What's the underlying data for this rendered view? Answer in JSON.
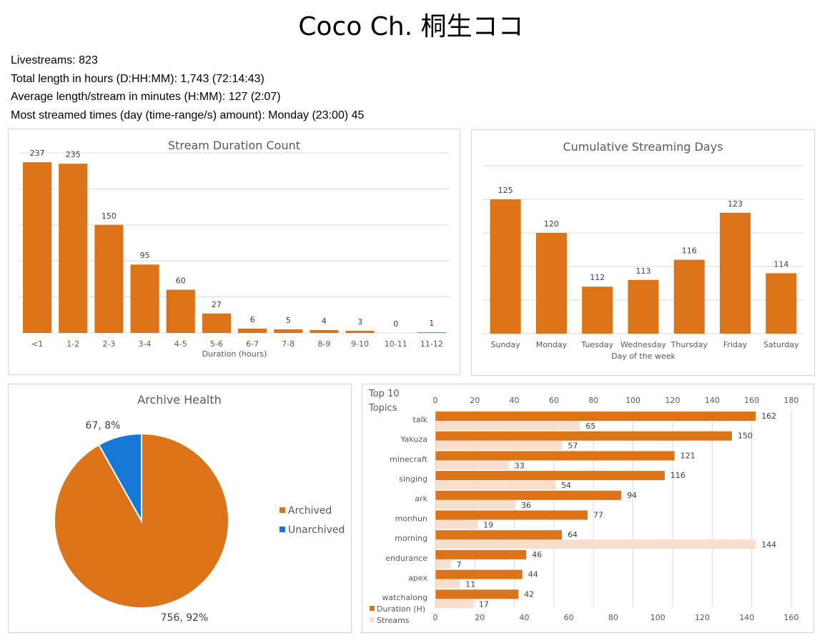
{
  "page": {
    "title": "Coco Ch. 桐生ココ",
    "stats": [
      "Livestreams: 823",
      "Total length in hours (D:HH:MM): 1,743 (72:14:43)",
      "Average length/stream in minutes (H:MM): 127 (2:07)",
      "Most streamed times (day (time-range/s) amount): Monday (23:00) 45"
    ]
  },
  "colors": {
    "orange": "#DD7318",
    "light": "#F8DECB",
    "blue": "#1777D5",
    "grid": "#D9D9D9",
    "text": "#595959"
  },
  "chart_data": [
    {
      "id": "duration",
      "type": "bar",
      "title": "Stream Duration Count",
      "xlabel": "Duration (hours)",
      "ylabel": "",
      "categories": [
        "<1",
        "1-2",
        "2-3",
        "3-4",
        "4-5",
        "5-6",
        "6-7",
        "7-8",
        "8-9",
        "9-10",
        "10-11",
        "11-12"
      ],
      "values": [
        237,
        235,
        150,
        95,
        60,
        27,
        6,
        5,
        4,
        3,
        0,
        1
      ],
      "ylim": [
        0,
        250
      ],
      "grid": true
    },
    {
      "id": "days",
      "type": "bar",
      "title": "Cumulative Streaming Days",
      "xlabel": "Day of the week",
      "ylabel": "",
      "categories": [
        "Sunday",
        "Monday",
        "Tuesday",
        "Wednesday",
        "Thursday",
        "Friday",
        "Saturday"
      ],
      "values": [
        125,
        120,
        112,
        113,
        116,
        123,
        114
      ],
      "ylim": [
        105,
        130
      ],
      "grid": true
    },
    {
      "id": "archive",
      "type": "pie",
      "title": "Archive Health",
      "labels": [
        "Archived",
        "Unarchived"
      ],
      "values": [
        756,
        67
      ],
      "data_labels": [
        "756, 92%",
        "67, 8%"
      ],
      "legend": "right"
    },
    {
      "id": "topics",
      "type": "bar",
      "orientation": "horizontal",
      "title": "Top 10 Topics",
      "categories": [
        "talk",
        "Yakuza",
        "minecraft",
        "singing",
        "ark",
        "monhun",
        "morning",
        "endurance",
        "apex",
        "watchalong"
      ],
      "series": [
        {
          "name": "Duration (H)",
          "values": [
            162,
            150,
            121,
            116,
            94,
            77,
            64,
            46,
            44,
            42
          ],
          "axis": "top",
          "ticks": [
            0,
            20,
            40,
            60,
            80,
            100,
            120,
            140,
            160,
            180
          ],
          "xlim": [
            0,
            180
          ]
        },
        {
          "name": "Streams",
          "values": [
            65,
            57,
            33,
            54,
            36,
            19,
            144,
            7,
            11,
            17
          ],
          "axis": "bottom",
          "ticks": [
            0,
            20,
            40,
            60,
            80,
            100,
            120,
            140,
            160
          ],
          "xlim": [
            0,
            160
          ]
        }
      ],
      "legend": "bottom-left"
    }
  ]
}
